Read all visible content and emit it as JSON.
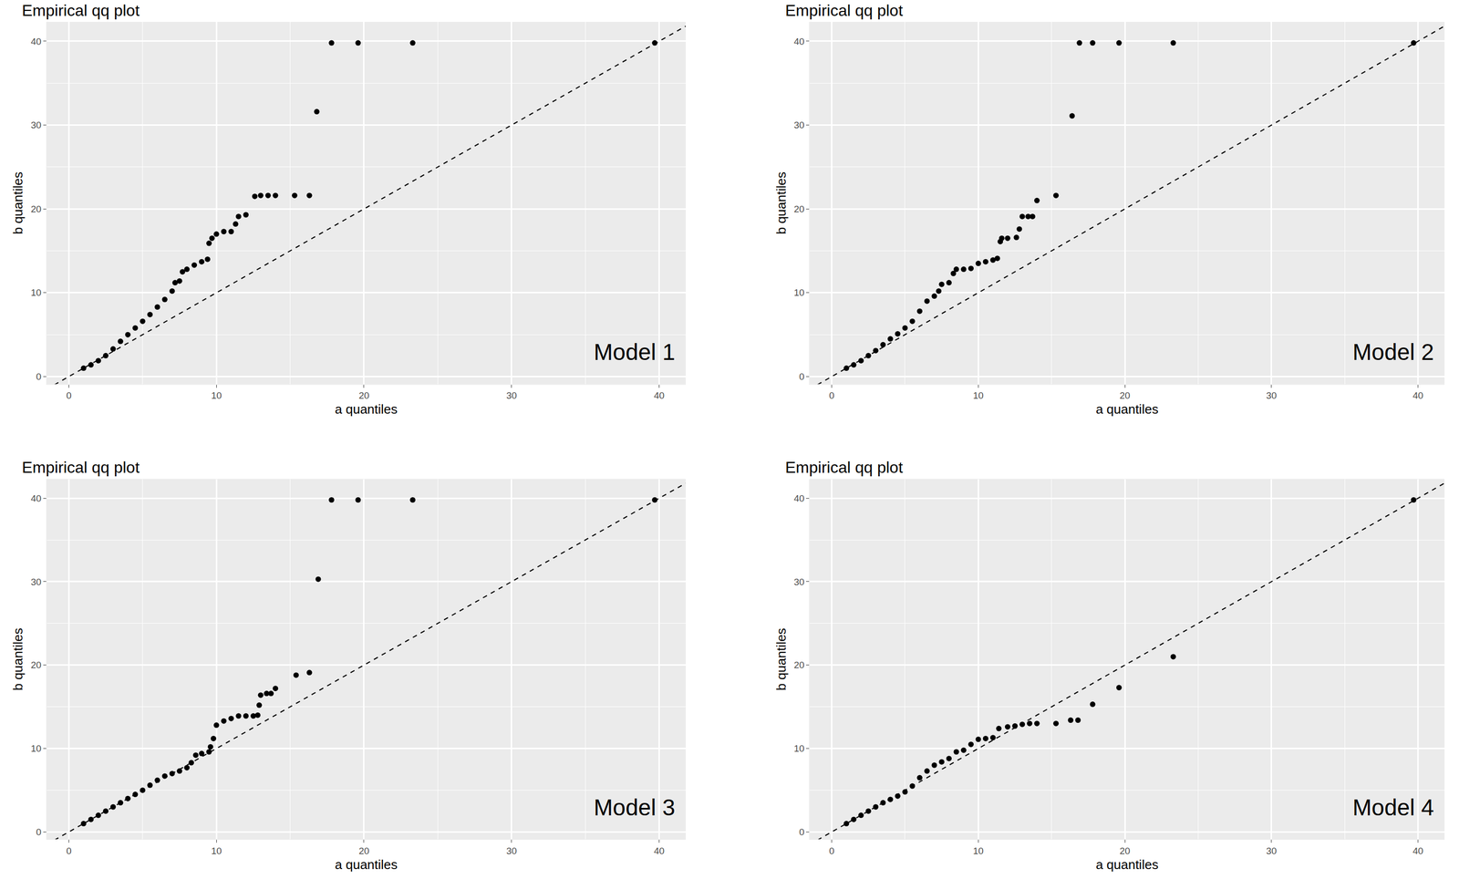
{
  "chart_data": [
    {
      "type": "scatter",
      "title": "Empirical qq plot",
      "x_label": "a quantiles",
      "y_label": "b quantiles",
      "annotation": "Model 1",
      "color": "#000000",
      "grid": true,
      "reference_line": {
        "slope": 1,
        "intercept": 0,
        "line_style": "dash"
      },
      "x": [
        1,
        1.5,
        2,
        2.5,
        3,
        3.5,
        4,
        4.5,
        5,
        5.5,
        6,
        6.5,
        7,
        7.2,
        7.5,
        7.7,
        8,
        8.5,
        9,
        9.4,
        9.5,
        9.7,
        10,
        10.5,
        11,
        11.3,
        11.5,
        12,
        12.6,
        13,
        13.5,
        14,
        15.3,
        16.3,
        16.8,
        17.8,
        19.6,
        23.3,
        39.7
      ],
      "y": [
        1,
        1.4,
        1.9,
        2.5,
        3.3,
        4.2,
        5,
        5.8,
        6.6,
        7.4,
        8.3,
        9.2,
        10.2,
        11.2,
        11.4,
        12.5,
        12.8,
        13.3,
        13.7,
        14,
        15.9,
        16.5,
        17,
        17.3,
        17.3,
        18.2,
        19.1,
        19.3,
        21.5,
        21.6,
        21.6,
        21.6,
        21.6,
        21.6,
        31.6,
        39.8,
        39.8,
        39.8,
        39.8
      ],
      "xlim": [
        -1.5,
        41.8
      ],
      "ylim": [
        -0.9,
        42.3
      ],
      "xticks": [
        0,
        10,
        20,
        30,
        40
      ],
      "yticks": [
        0,
        10,
        20,
        30,
        40
      ]
    },
    {
      "type": "scatter",
      "title": "Empirical qq plot",
      "x_label": "a quantiles",
      "y_label": "b quantiles",
      "annotation": "Model 2",
      "color": "#000000",
      "grid": true,
      "reference_line": {
        "slope": 1,
        "intercept": 0,
        "line_style": "dash"
      },
      "x": [
        1,
        1.5,
        2,
        2.5,
        3,
        3.5,
        4,
        4.5,
        5,
        5.5,
        6,
        6.5,
        7,
        7.3,
        7.5,
        8,
        8.3,
        8.5,
        9,
        9.5,
        10,
        10.5,
        11,
        11.3,
        11.5,
        11.6,
        12,
        12.6,
        12.8,
        13,
        13.4,
        13.7,
        14,
        15.3,
        16.4,
        16.9,
        17.8,
        19.6,
        23.3,
        39.7
      ],
      "y": [
        1,
        1.4,
        1.9,
        2.5,
        3.1,
        3.8,
        4.5,
        5.1,
        5.8,
        6.6,
        7.8,
        9,
        9.6,
        10.2,
        11,
        11.2,
        12.3,
        12.8,
        12.8,
        12.9,
        13.5,
        13.7,
        13.9,
        14.1,
        16.1,
        16.5,
        16.5,
        16.6,
        17.6,
        19.1,
        19.1,
        19.1,
        21,
        21.6,
        31.1,
        39.8,
        39.8,
        39.8,
        39.8,
        39.8
      ],
      "xlim": [
        -1.5,
        41.8
      ],
      "ylim": [
        -0.9,
        42.3
      ],
      "xticks": [
        0,
        10,
        20,
        30,
        40
      ],
      "yticks": [
        0,
        10,
        20,
        30,
        40
      ]
    },
    {
      "type": "scatter",
      "title": "Empirical qq plot",
      "x_label": "a quantiles",
      "y_label": "b quantiles",
      "annotation": "Model 3",
      "color": "#000000",
      "grid": true,
      "reference_line": {
        "slope": 1,
        "intercept": 0,
        "line_style": "dash"
      },
      "x": [
        1,
        1.5,
        2,
        2.5,
        3,
        3.5,
        4,
        4.5,
        5,
        5.5,
        6,
        6.5,
        7,
        7.5,
        8,
        8.3,
        8.6,
        9,
        9.5,
        9.6,
        9.8,
        10,
        10.5,
        11,
        11.5,
        12,
        12.5,
        12.8,
        12.9,
        13,
        13.4,
        13.7,
        14,
        15.4,
        16.3,
        16.9,
        17.8,
        19.6,
        23.3,
        39.7
      ],
      "y": [
        1,
        1.5,
        2,
        2.5,
        3,
        3.5,
        4,
        4.5,
        5,
        5.6,
        6.2,
        6.7,
        7,
        7.3,
        7.7,
        8.3,
        9.2,
        9.4,
        9.6,
        10.2,
        11.2,
        12.8,
        13.3,
        13.6,
        13.9,
        13.9,
        13.9,
        14,
        15.2,
        16.4,
        16.6,
        16.6,
        17.2,
        18.8,
        19.1,
        30.3,
        39.8,
        39.8,
        39.8,
        39.8
      ],
      "xlim": [
        -1.5,
        41.8
      ],
      "ylim": [
        -0.9,
        42.3
      ],
      "xticks": [
        0,
        10,
        20,
        30,
        40
      ],
      "yticks": [
        0,
        10,
        20,
        30,
        40
      ]
    },
    {
      "type": "scatter",
      "title": "Empirical qq plot",
      "x_label": "a quantiles",
      "y_label": "b quantiles",
      "annotation": "Model 4",
      "color": "#000000",
      "grid": true,
      "reference_line": {
        "slope": 1,
        "intercept": 0,
        "line_style": "dash"
      },
      "x": [
        1,
        1.5,
        2,
        2.5,
        3,
        3.5,
        4,
        4.5,
        5,
        5.5,
        6,
        6.5,
        7,
        7.5,
        8,
        8.5,
        9,
        9.5,
        10,
        10.5,
        11,
        11.4,
        12,
        12.5,
        13,
        13.5,
        14,
        15.3,
        16.3,
        16.8,
        17.8,
        19.6,
        23.3,
        39.7
      ],
      "y": [
        1,
        1.5,
        2,
        2.5,
        3,
        3.5,
        3.9,
        4.3,
        4.8,
        5.5,
        6.5,
        7.3,
        8,
        8.4,
        8.8,
        9.6,
        9.8,
        10.5,
        11.1,
        11.2,
        11.3,
        12.4,
        12.6,
        12.7,
        12.9,
        13,
        13,
        13,
        13.4,
        13.4,
        15.3,
        17.3,
        21,
        39.8
      ],
      "xlim": [
        -1.5,
        41.8
      ],
      "ylim": [
        -0.9,
        42.3
      ],
      "xticks": [
        0,
        10,
        20,
        30,
        40
      ],
      "yticks": [
        0,
        10,
        20,
        30,
        40
      ]
    }
  ]
}
